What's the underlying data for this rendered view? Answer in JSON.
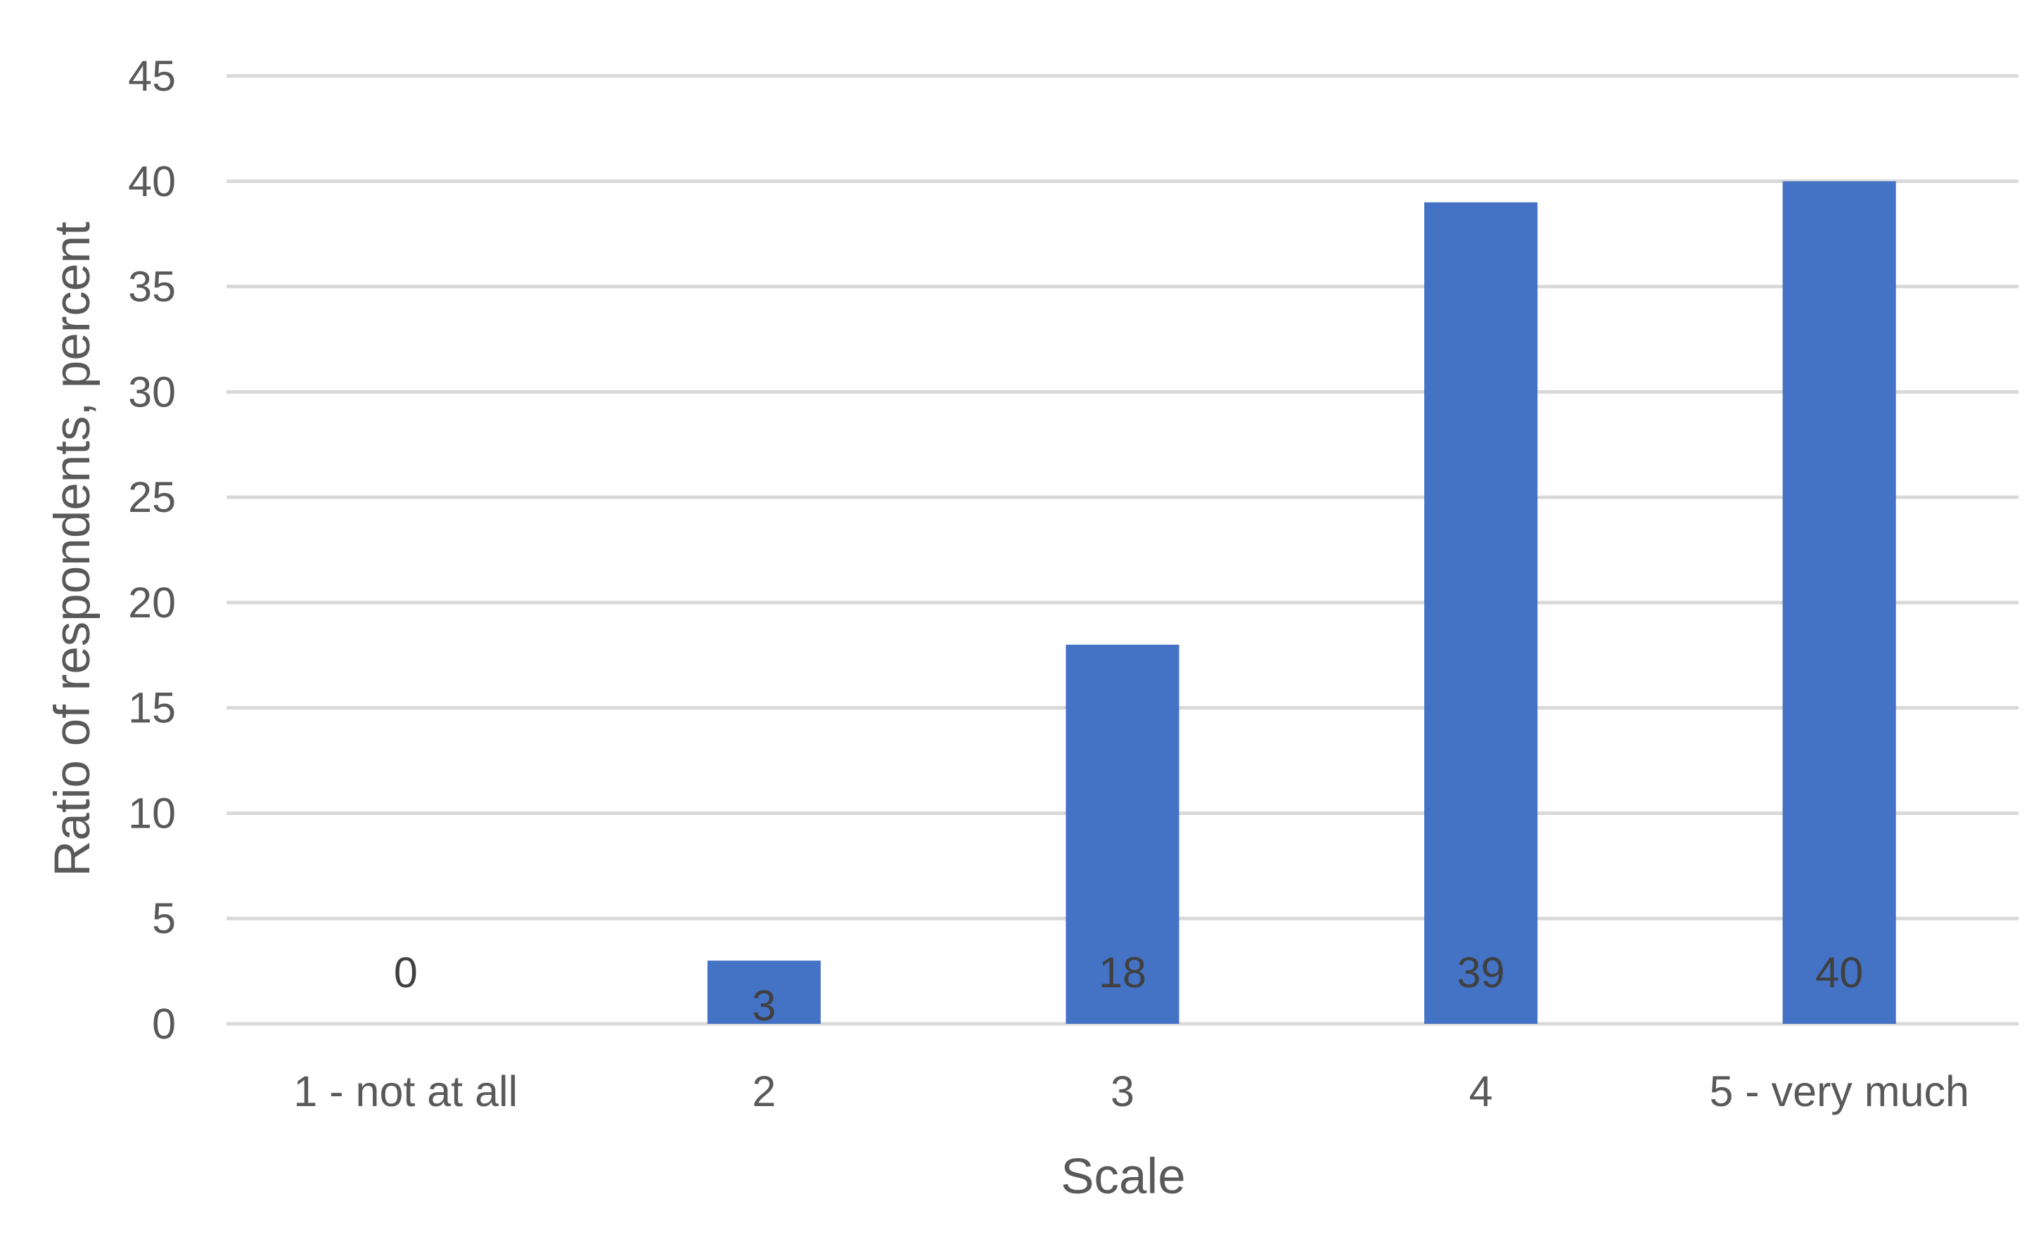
{
  "chart_data": {
    "type": "bar",
    "categories": [
      "1 - not at all",
      "2",
      "3",
      "4",
      "5 - very much"
    ],
    "values": [
      0,
      3,
      18,
      39,
      40
    ],
    "data_labels": [
      "0",
      "3",
      "18",
      "39",
      "40"
    ],
    "title": "",
    "xlabel": "Scale",
    "ylabel": "Ratio of respondents, percent",
    "ylim": [
      0,
      45
    ],
    "yticks": [
      0,
      5,
      10,
      15,
      20,
      25,
      30,
      35,
      40,
      45
    ],
    "ytick_labels": [
      "0",
      "5",
      "10",
      "15",
      "20",
      "25",
      "30",
      "35",
      "40",
      "45"
    ],
    "grid": true,
    "legend": "none",
    "bar_color": "#4472c4"
  }
}
